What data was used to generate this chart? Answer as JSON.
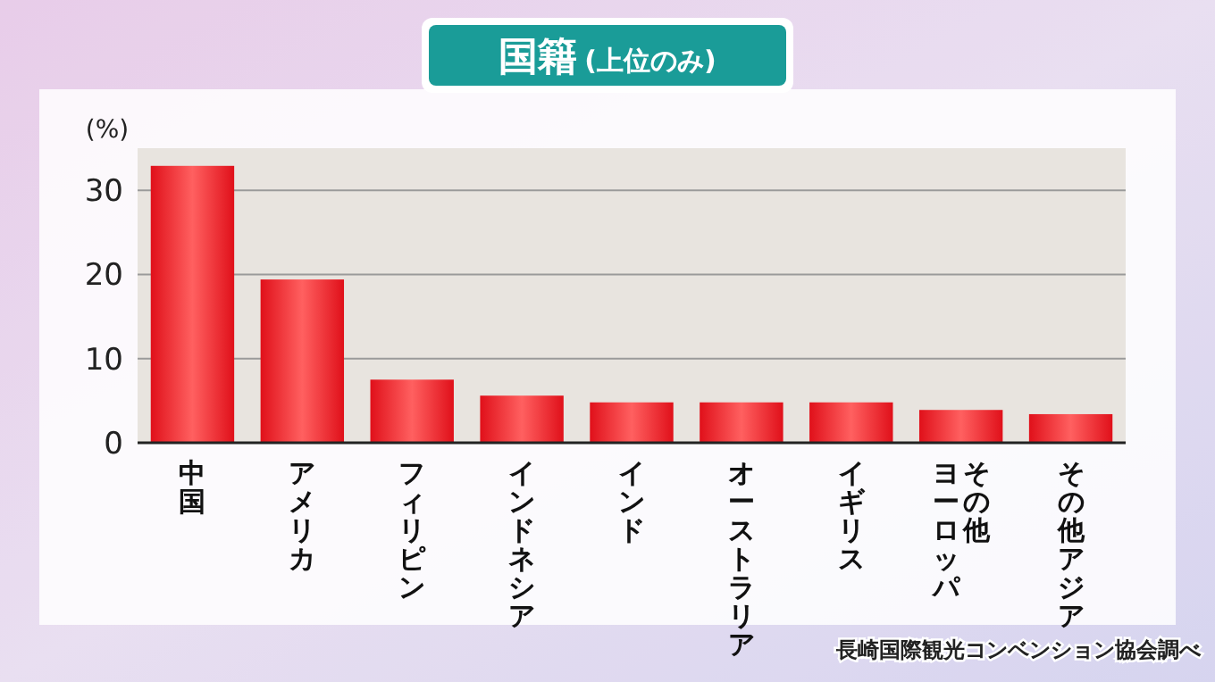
{
  "chart_data": {
    "type": "bar",
    "title": "国籍",
    "subtitle": "(上位のみ)",
    "ylabel": "(%)",
    "categories": [
      "中国",
      "アメリカ",
      "フィリピン",
      "インドネシア",
      "インド",
      "オーストラリア",
      "イギリス",
      "その他ヨーロッパ",
      "その他アジア"
    ],
    "values": [
      32.9,
      19.4,
      7.5,
      5.6,
      4.8,
      4.8,
      4.8,
      3.9,
      3.4
    ],
    "color": "#e0101a",
    "ylim": [
      0,
      35
    ],
    "yticks": [
      0,
      10,
      20,
      30
    ],
    "grid": "y",
    "annotations": [
      "長崎国際観光コンベンション協会調べ"
    ]
  }
}
